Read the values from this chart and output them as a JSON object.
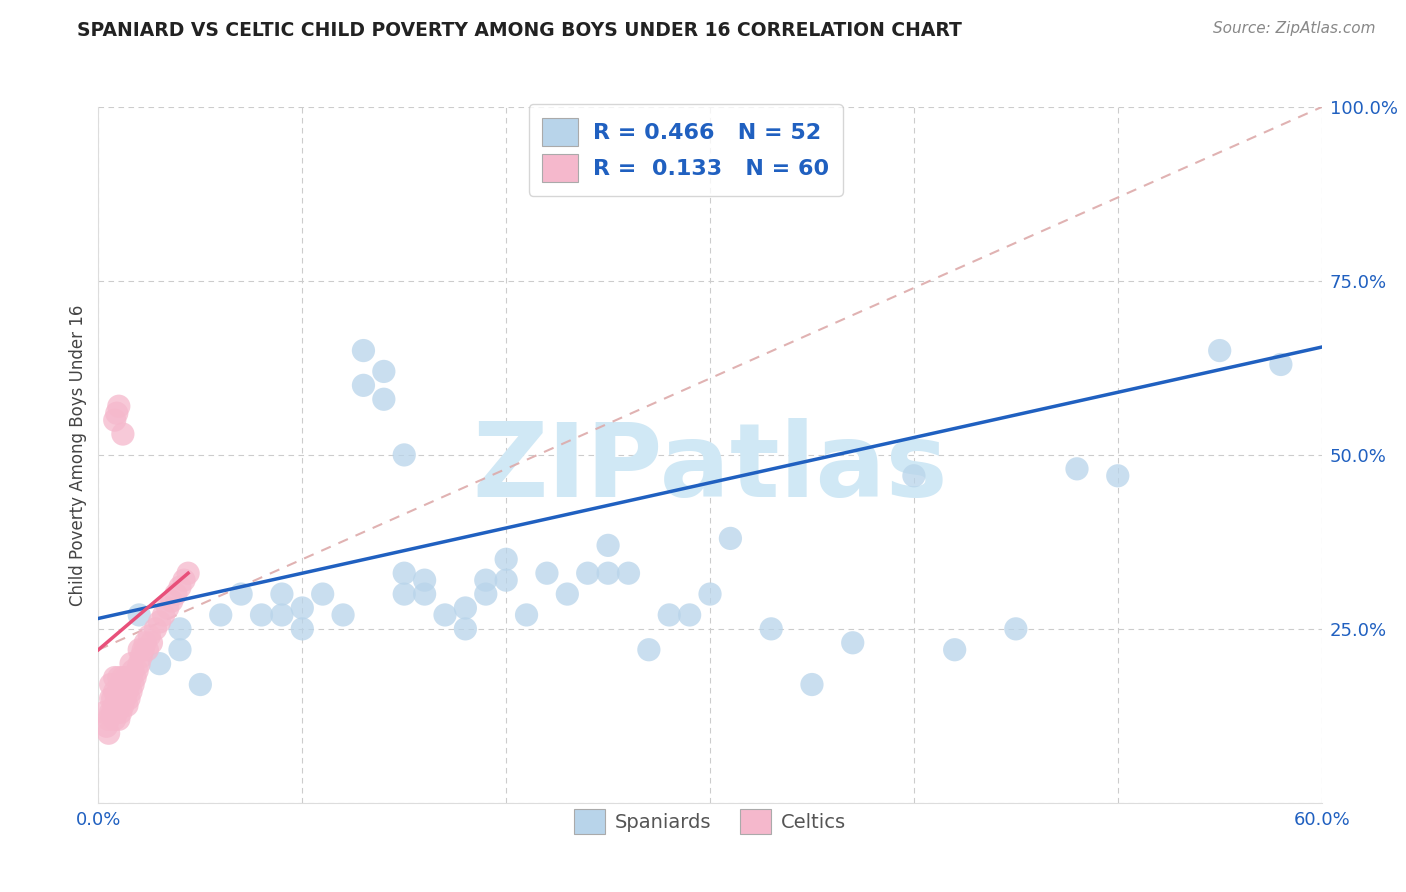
{
  "title": "SPANIARD VS CELTIC CHILD POVERTY AMONG BOYS UNDER 16 CORRELATION CHART",
  "source": "Source: ZipAtlas.com",
  "ylabel": "Child Poverty Among Boys Under 16",
  "xlim": [
    0.0,
    0.6
  ],
  "ylim": [
    0.0,
    1.0
  ],
  "spaniard_R": 0.466,
  "spaniard_N": 52,
  "celtic_R": 0.133,
  "celtic_N": 60,
  "spaniard_color": "#b8d4ea",
  "celtic_color": "#f5b8cc",
  "spaniard_line_color": "#2060c0",
  "celtic_line_color": "#e8507a",
  "diag_color": "#e0a0b0",
  "watermark_color": "#d0e8f5",
  "background_color": "#ffffff",
  "grid_color": "#cccccc",
  "title_color": "#222222",
  "axis_tick_color": "#2060c0",
  "legend_text_color": "#2060c0",
  "source_color": "#888888",
  "spaniard_x": [
    0.02,
    0.03,
    0.04,
    0.04,
    0.05,
    0.06,
    0.07,
    0.08,
    0.09,
    0.09,
    0.1,
    0.1,
    0.11,
    0.12,
    0.13,
    0.13,
    0.14,
    0.14,
    0.15,
    0.15,
    0.15,
    0.16,
    0.16,
    0.17,
    0.18,
    0.18,
    0.19,
    0.19,
    0.2,
    0.2,
    0.21,
    0.22,
    0.23,
    0.24,
    0.25,
    0.25,
    0.26,
    0.27,
    0.28,
    0.29,
    0.3,
    0.31,
    0.33,
    0.35,
    0.37,
    0.4,
    0.42,
    0.45,
    0.48,
    0.5,
    0.55,
    0.58
  ],
  "spaniard_y": [
    0.27,
    0.2,
    0.22,
    0.25,
    0.17,
    0.27,
    0.3,
    0.27,
    0.27,
    0.3,
    0.25,
    0.28,
    0.3,
    0.27,
    0.6,
    0.65,
    0.58,
    0.62,
    0.3,
    0.33,
    0.5,
    0.3,
    0.32,
    0.27,
    0.25,
    0.28,
    0.3,
    0.32,
    0.32,
    0.35,
    0.27,
    0.33,
    0.3,
    0.33,
    0.37,
    0.33,
    0.33,
    0.22,
    0.27,
    0.27,
    0.3,
    0.38,
    0.25,
    0.17,
    0.23,
    0.47,
    0.22,
    0.25,
    0.48,
    0.47,
    0.65,
    0.63
  ],
  "celtic_x": [
    0.003,
    0.004,
    0.005,
    0.005,
    0.006,
    0.006,
    0.006,
    0.007,
    0.007,
    0.008,
    0.008,
    0.008,
    0.008,
    0.009,
    0.009,
    0.01,
    0.01,
    0.01,
    0.01,
    0.011,
    0.011,
    0.011,
    0.012,
    0.012,
    0.012,
    0.013,
    0.013,
    0.014,
    0.014,
    0.014,
    0.015,
    0.015,
    0.016,
    0.016,
    0.016,
    0.017,
    0.017,
    0.018,
    0.019,
    0.02,
    0.02,
    0.021,
    0.022,
    0.023,
    0.024,
    0.025,
    0.026,
    0.028,
    0.03,
    0.032,
    0.034,
    0.036,
    0.038,
    0.04,
    0.042,
    0.044,
    0.008,
    0.009,
    0.01,
    0.012
  ],
  "celtic_y": [
    0.13,
    0.11,
    0.1,
    0.12,
    0.13,
    0.15,
    0.17,
    0.13,
    0.15,
    0.12,
    0.14,
    0.16,
    0.18,
    0.13,
    0.15,
    0.12,
    0.14,
    0.16,
    0.18,
    0.13,
    0.15,
    0.17,
    0.14,
    0.16,
    0.18,
    0.15,
    0.17,
    0.14,
    0.16,
    0.18,
    0.15,
    0.17,
    0.16,
    0.18,
    0.2,
    0.17,
    0.19,
    0.18,
    0.19,
    0.2,
    0.22,
    0.21,
    0.22,
    0.23,
    0.22,
    0.24,
    0.23,
    0.25,
    0.26,
    0.27,
    0.28,
    0.29,
    0.3,
    0.31,
    0.32,
    0.33,
    0.55,
    0.56,
    0.57,
    0.53
  ]
}
